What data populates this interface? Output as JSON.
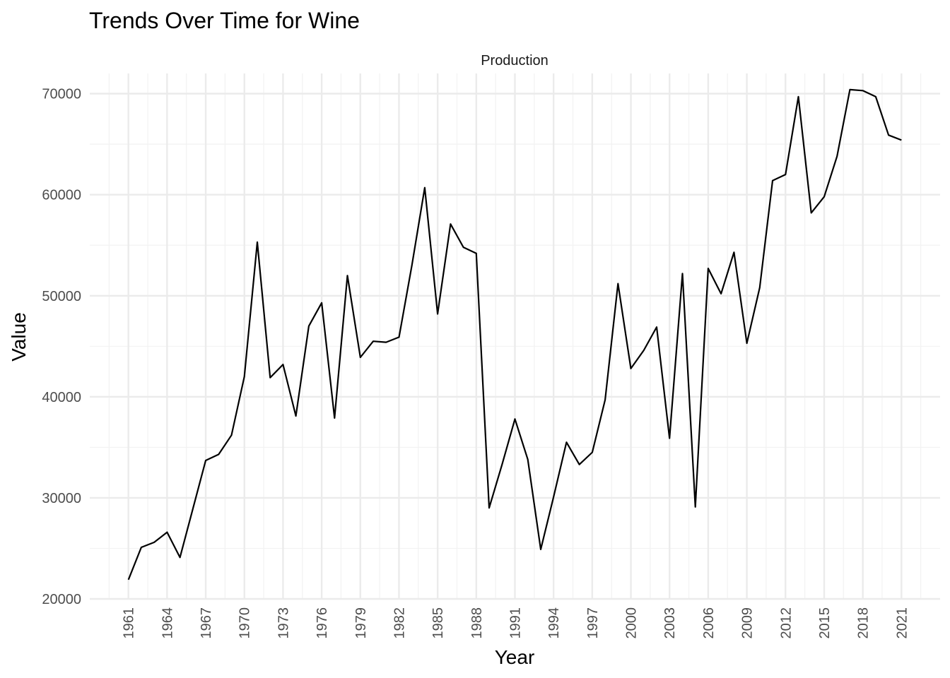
{
  "chart_data": {
    "type": "line",
    "title": "Trends Over Time for Wine",
    "facet_label": "Production",
    "xlabel": "Year",
    "ylabel": "Value",
    "xlim": [
      1958,
      2024
    ],
    "ylim": [
      20000,
      72000
    ],
    "x_ticks": [
      1961,
      1964,
      1967,
      1970,
      1973,
      1976,
      1979,
      1982,
      1985,
      1988,
      1991,
      1994,
      1997,
      2000,
      2003,
      2006,
      2009,
      2012,
      2015,
      2018,
      2021
    ],
    "y_ticks": [
      20000,
      30000,
      40000,
      50000,
      60000,
      70000
    ],
    "grid": true,
    "colors": {
      "line": "#000000",
      "grid_major": "#ebebeb",
      "grid_minor": "#f2f2f2"
    },
    "series": [
      {
        "x": [
          1961,
          1962,
          1963,
          1964,
          1965,
          1966,
          1967,
          1968,
          1969,
          1970,
          1971,
          1972,
          1973,
          1974,
          1975,
          1976,
          1977,
          1978,
          1979,
          1980,
          1981,
          1982,
          1983,
          1984,
          1985,
          1986,
          1987,
          1988,
          1989,
          1990,
          1991,
          1992,
          1993,
          1994,
          1995,
          1996,
          1997,
          1998,
          1999,
          2000,
          2001,
          2002,
          2003,
          2004,
          2005,
          2006,
          2007,
          2008,
          2009,
          2010,
          2011,
          2012,
          2013,
          2014,
          2015,
          2016,
          2017,
          2018,
          2019,
          2020,
          2021
        ],
        "values": [
          21900,
          25100,
          25600,
          26600,
          24100,
          28900,
          33700,
          34300,
          36200,
          42000,
          55300,
          41900,
          43200,
          38100,
          47000,
          49300,
          37900,
          52000,
          43900,
          45500,
          45400,
          45900,
          53000,
          60700,
          48200,
          57100,
          54800,
          54200,
          29000,
          33300,
          37800,
          33800,
          24900,
          30100,
          35500,
          33300,
          34500,
          39700,
          51200,
          42800,
          44600,
          46900,
          35900,
          52200,
          29100,
          52700,
          50200,
          54300,
          45300,
          50800,
          61400,
          62000,
          69700,
          58200,
          59800,
          63800,
          70400,
          70300,
          69700,
          65900,
          65400
        ]
      }
    ]
  }
}
